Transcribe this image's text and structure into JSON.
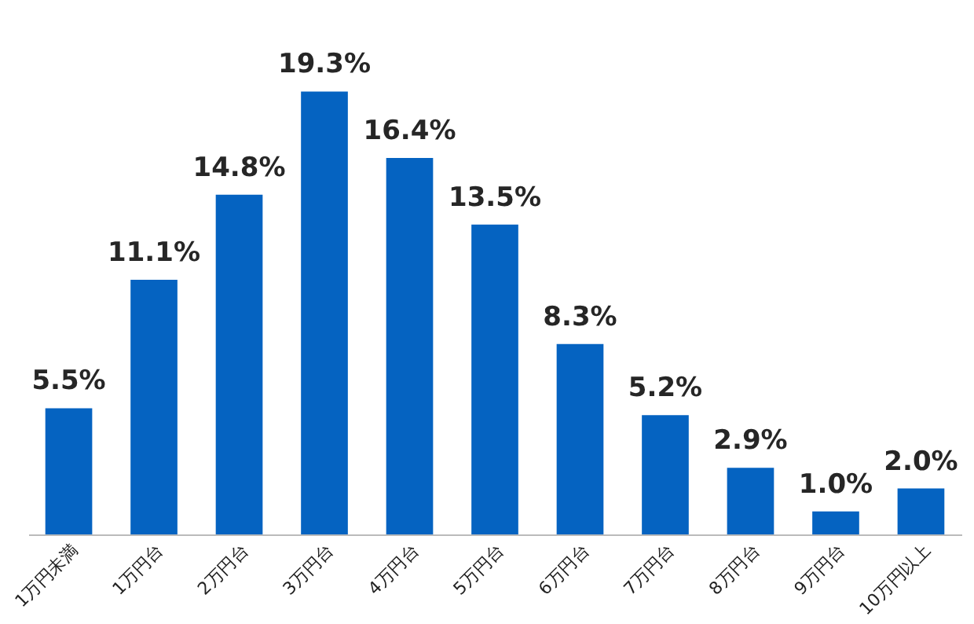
{
  "chart_data": {
    "type": "bar",
    "categories": [
      "1万円未満",
      "1万円台",
      "2万円台",
      "3万円台",
      "4万円台",
      "5万円台",
      "6万円台",
      "7万円台",
      "8万円台",
      "9万円台",
      "10万円以上"
    ],
    "values": [
      5.5,
      11.1,
      14.8,
      19.3,
      16.4,
      13.5,
      8.3,
      5.2,
      2.9,
      1.0,
      2.0
    ],
    "value_labels": [
      "5.5%",
      "11.1%",
      "14.8%",
      "19.3%",
      "16.4%",
      "13.5%",
      "8.3%",
      "5.2%",
      "2.9%",
      "1.0%",
      "2.0%"
    ],
    "color": "#0563c1"
  }
}
